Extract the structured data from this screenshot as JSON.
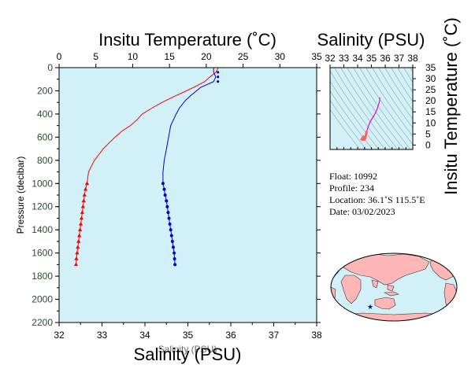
{
  "chart_data": [
    {
      "type": "line",
      "title": "Insitu Temperature (˚C)",
      "xlabel_bottom": "Salinity (PSU)",
      "xlabel_bottom_faint": "Salinity (PSU)",
      "ylabel": "Pressure (decibar)",
      "y_inverted": true,
      "ylim": [
        0,
        2200
      ],
      "y_ticks": [
        "0",
        "200",
        "400",
        "600",
        "800",
        "1000",
        "1200",
        "1400",
        "1600",
        "1800",
        "2000",
        "2200"
      ],
      "temp_axis": {
        "range": [
          0,
          35
        ],
        "ticks": [
          "0",
          "5",
          "10",
          "15",
          "20",
          "25",
          "30",
          "35"
        ]
      },
      "sal_axis": {
        "range": [
          32,
          38
        ],
        "ticks": [
          "32",
          "33",
          "34",
          "35",
          "36",
          "37",
          "38"
        ]
      },
      "colors": {
        "background": "#d2f0f8",
        "temperature": "#ff0000",
        "salinity": "#0000cc"
      },
      "series": [
        {
          "name": "temperature",
          "axis": "temperature",
          "continuous": [
            [
              21.6,
              5
            ],
            [
              21.3,
              40
            ],
            [
              20.5,
              80
            ],
            [
              19.8,
              120
            ],
            [
              18.6,
              160
            ],
            [
              17.3,
              200
            ],
            [
              15.6,
              250
            ],
            [
              14,
              300
            ],
            [
              12.6,
              350
            ],
            [
              11.3,
              400
            ],
            [
              10.6,
              450
            ],
            [
              9.7,
              500
            ],
            [
              8.5,
              550
            ],
            [
              7.6,
              600
            ],
            [
              6.8,
              650
            ],
            [
              6.0,
              700
            ],
            [
              5.4,
              750
            ],
            [
              4.8,
              800
            ],
            [
              4.4,
              850
            ],
            [
              4.0,
              900
            ],
            [
              3.9,
              950
            ],
            [
              3.8,
              1000
            ]
          ],
          "markers": [
            [
              3.8,
              1000
            ],
            [
              3.6,
              1050
            ],
            [
              3.45,
              1100
            ],
            [
              3.35,
              1150
            ],
            [
              3.25,
              1200
            ],
            [
              3.15,
              1250
            ],
            [
              3.05,
              1300
            ],
            [
              2.95,
              1350
            ],
            [
              2.85,
              1400
            ],
            [
              2.75,
              1450
            ],
            [
              2.65,
              1500
            ],
            [
              2.55,
              1550
            ],
            [
              2.45,
              1600
            ],
            [
              2.35,
              1650
            ],
            [
              2.3,
              1700
            ]
          ]
        },
        {
          "name": "salinity",
          "axis": "salinity",
          "continuous": [
            [
              35.6,
              5
            ],
            [
              35.6,
              40
            ],
            [
              35.65,
              80
            ],
            [
              35.6,
              120
            ],
            [
              35.3,
              170
            ],
            [
              35.1,
              230
            ],
            [
              34.95,
              280
            ],
            [
              34.8,
              350
            ],
            [
              34.7,
              420
            ],
            [
              34.6,
              500
            ],
            [
              34.55,
              600
            ],
            [
              34.5,
              700
            ],
            [
              34.45,
              800
            ],
            [
              34.42,
              900
            ],
            [
              34.42,
              1000
            ]
          ],
          "markers": [
            [
              34.42,
              1000
            ],
            [
              34.45,
              1050
            ],
            [
              34.47,
              1100
            ],
            [
              34.5,
              1150
            ],
            [
              34.52,
              1200
            ],
            [
              34.54,
              1250
            ],
            [
              34.56,
              1300
            ],
            [
              34.58,
              1350
            ],
            [
              34.6,
              1400
            ],
            [
              34.62,
              1450
            ],
            [
              34.64,
              1500
            ],
            [
              34.66,
              1550
            ],
            [
              34.68,
              1600
            ],
            [
              34.69,
              1650
            ],
            [
              34.7,
              1700
            ]
          ],
          "surface_markers": [
            [
              35.7,
              40
            ],
            [
              35.7,
              80
            ],
            [
              35.7,
              120
            ]
          ]
        }
      ]
    },
    {
      "type": "scatter",
      "title": "Salinity (PSU)",
      "ylabel": "Insitu Temperature (˚C)",
      "x_ticks": [
        "32",
        "33",
        "34",
        "35",
        "36",
        "37",
        "38"
      ],
      "y_ticks": [
        "35",
        "30",
        "25",
        "20",
        "15",
        "10",
        "5",
        "0"
      ],
      "xlim": [
        32,
        38
      ],
      "ylim": [
        -2,
        35
      ],
      "colors": {
        "background": "#d2f0f8",
        "trace_deep": "#ff6060",
        "trace_upper": "#e000e0",
        "contours": "#6a7f86"
      },
      "ts_points": [
        [
          34.42,
          3.8
        ],
        [
          34.35,
          3.2
        ],
        [
          34.3,
          2.6
        ],
        [
          34.35,
          2.4
        ],
        [
          34.5,
          2.5
        ],
        [
          34.55,
          3.0
        ],
        [
          34.6,
          4.5
        ],
        [
          34.65,
          6.0
        ],
        [
          34.75,
          8.0
        ],
        [
          34.9,
          10.5
        ],
        [
          35.1,
          12.5
        ],
        [
          35.25,
          14.0
        ],
        [
          35.4,
          16.0
        ],
        [
          35.5,
          18.0
        ],
        [
          35.6,
          20.0
        ],
        [
          35.6,
          21.6
        ]
      ]
    }
  ],
  "float_info": {
    "float_line": "Float:  10992",
    "profile_line": "Profile:  234",
    "location_line": "Location:  36.1˚S  115.5˚E",
    "date_line": "Date:  03/02/2023"
  },
  "map": {
    "marker_lon": 115.5,
    "marker_lat": -36.1,
    "colors": {
      "ocean": "#d2f0f8",
      "land": "#ffb6b6",
      "marker": "#0000ff"
    }
  }
}
